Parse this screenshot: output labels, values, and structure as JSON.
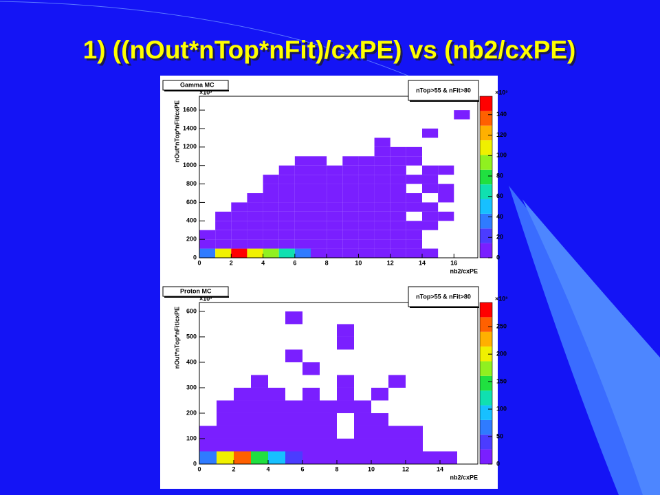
{
  "title": "1) ((nOut*nTop*nFit)/cxPE) vs (nb2/cxPE)",
  "chart_data": [
    {
      "type": "heatmap",
      "title": "Gamma MC",
      "annotation": "nTop>55 & nFit>80",
      "x_label": "nb2/cxPE",
      "y_label": "nOut*nTop*nFit/cxPE",
      "y_multiplier": "×10³",
      "z_multiplier": "×10³",
      "xlim": [
        0,
        17.5
      ],
      "xticks": [
        0,
        2,
        4,
        6,
        8,
        10,
        12,
        14,
        16
      ],
      "ylim": [
        0,
        1750
      ],
      "yticks": [
        0,
        200,
        400,
        600,
        800,
        1000,
        1200,
        1400,
        1600
      ],
      "zlim": [
        0,
        158
      ],
      "zticks": [
        0,
        20,
        40,
        60,
        80,
        100,
        120,
        140
      ],
      "xbins": [
        0,
        1,
        2,
        3,
        4,
        5,
        6,
        7,
        8,
        9,
        10,
        11,
        12,
        13,
        14,
        15,
        16,
        17
      ],
      "ybins": [
        0,
        100,
        200,
        300,
        400,
        500,
        600,
        700,
        800,
        900,
        1000,
        1100,
        1200,
        1300,
        1400,
        1500,
        1600,
        1700
      ],
      "z": [
        [
          40,
          110,
          150,
          110,
          90,
          60,
          30,
          10,
          5,
          3,
          2,
          2,
          1,
          1,
          1,
          0,
          0
        ],
        [
          1,
          1,
          1,
          1,
          1,
          1,
          1,
          1,
          1,
          1,
          1,
          1,
          1,
          1,
          0,
          0,
          0
        ],
        [
          1,
          1,
          1,
          1,
          1,
          1,
          1,
          1,
          1,
          1,
          1,
          1,
          1,
          1,
          0,
          0,
          0
        ],
        [
          0,
          1,
          1,
          1,
          1,
          1,
          1,
          1,
          1,
          1,
          1,
          1,
          1,
          1,
          1,
          0,
          0
        ],
        [
          0,
          1,
          1,
          1,
          1,
          1,
          1,
          1,
          1,
          1,
          1,
          1,
          1,
          0,
          1,
          1,
          0
        ],
        [
          0,
          0,
          1,
          1,
          1,
          1,
          1,
          1,
          1,
          1,
          1,
          1,
          1,
          1,
          1,
          0,
          0
        ],
        [
          0,
          0,
          0,
          1,
          1,
          1,
          1,
          1,
          1,
          1,
          1,
          1,
          1,
          1,
          0,
          1,
          0
        ],
        [
          0,
          0,
          0,
          0,
          1,
          1,
          1,
          1,
          1,
          1,
          1,
          1,
          1,
          0,
          1,
          1,
          0
        ],
        [
          0,
          0,
          0,
          0,
          1,
          1,
          1,
          1,
          1,
          1,
          1,
          1,
          1,
          1,
          1,
          0,
          0
        ],
        [
          0,
          0,
          0,
          0,
          0,
          1,
          1,
          1,
          1,
          1,
          1,
          1,
          1,
          0,
          1,
          1,
          0
        ],
        [
          0,
          0,
          0,
          0,
          0,
          0,
          1,
          1,
          0,
          1,
          1,
          1,
          1,
          1,
          0,
          0,
          0
        ],
        [
          0,
          0,
          0,
          0,
          0,
          0,
          0,
          0,
          0,
          0,
          0,
          1,
          1,
          1,
          0,
          0,
          0
        ],
        [
          0,
          0,
          0,
          0,
          0,
          0,
          0,
          0,
          0,
          0,
          0,
          1,
          0,
          0,
          0,
          0,
          0
        ],
        [
          0,
          0,
          0,
          0,
          0,
          0,
          0,
          0,
          0,
          0,
          0,
          0,
          0,
          0,
          1,
          0,
          0
        ],
        [
          0,
          0,
          0,
          0,
          0,
          0,
          0,
          0,
          0,
          0,
          0,
          0,
          0,
          0,
          0,
          0,
          0
        ],
        [
          0,
          0,
          0,
          0,
          0,
          0,
          0,
          0,
          0,
          0,
          0,
          0,
          0,
          0,
          0,
          0,
          1
        ],
        [
          0,
          0,
          0,
          0,
          0,
          0,
          0,
          0,
          0,
          0,
          0,
          0,
          0,
          0,
          0,
          0,
          0
        ]
      ],
      "palette": [
        "#7a1fff",
        "#4b3cff",
        "#2f7bff",
        "#17c0ff",
        "#10e0b0",
        "#20e040",
        "#90f020",
        "#f0f000",
        "#ffb000",
        "#ff6000",
        "#ff0000"
      ]
    },
    {
      "type": "heatmap",
      "title": "Proton MC",
      "annotation": "nTop>55 & nFit>80",
      "x_label": "nb2/cxPE",
      "y_label": "nOut*nTop*nFit/cxPE",
      "y_multiplier": "×10³",
      "z_multiplier": "×10³",
      "xlim": [
        0,
        16.2
      ],
      "xticks": [
        0,
        2,
        4,
        6,
        8,
        10,
        12,
        14
      ],
      "ylim": [
        0,
        635
      ],
      "yticks": [
        0,
        100,
        200,
        300,
        400,
        500,
        600
      ],
      "zlim": [
        0,
        294
      ],
      "zticks": [
        0,
        50,
        100,
        150,
        200,
        250
      ],
      "xbins": [
        0,
        1,
        2,
        3,
        4,
        5,
        6,
        7,
        8,
        9,
        10,
        11,
        12,
        13,
        14,
        15,
        16
      ],
      "ybins": [
        0,
        50,
        100,
        150,
        200,
        250,
        300,
        350,
        400,
        450,
        500,
        550,
        600,
        650
      ],
      "z": [
        [
          80,
          200,
          250,
          150,
          90,
          50,
          20,
          10,
          5,
          3,
          2,
          1,
          1,
          1,
          1,
          0
        ],
        [
          1,
          1,
          1,
          1,
          1,
          1,
          1,
          1,
          1,
          1,
          1,
          1,
          1,
          0,
          0,
          0
        ],
        [
          1,
          1,
          1,
          1,
          1,
          1,
          1,
          1,
          0,
          1,
          1,
          1,
          1,
          0,
          0,
          0
        ],
        [
          0,
          1,
          1,
          1,
          1,
          1,
          1,
          1,
          0,
          1,
          1,
          0,
          0,
          0,
          0,
          0
        ],
        [
          0,
          1,
          1,
          1,
          1,
          1,
          1,
          1,
          1,
          1,
          0,
          0,
          0,
          0,
          0,
          0
        ],
        [
          0,
          0,
          1,
          1,
          1,
          0,
          1,
          0,
          1,
          0,
          1,
          0,
          0,
          0,
          0,
          0
        ],
        [
          0,
          0,
          0,
          1,
          0,
          0,
          0,
          0,
          1,
          0,
          0,
          1,
          0,
          0,
          0,
          0
        ],
        [
          0,
          0,
          0,
          0,
          0,
          0,
          1,
          0,
          0,
          0,
          0,
          0,
          0,
          0,
          0,
          0
        ],
        [
          0,
          0,
          0,
          0,
          0,
          1,
          0,
          0,
          0,
          0,
          0,
          0,
          0,
          0,
          0,
          0
        ],
        [
          0,
          0,
          0,
          0,
          0,
          0,
          0,
          0,
          1,
          0,
          0,
          0,
          0,
          0,
          0,
          0
        ],
        [
          0,
          0,
          0,
          0,
          0,
          0,
          0,
          0,
          1,
          0,
          0,
          0,
          0,
          0,
          0,
          0
        ],
        [
          0,
          0,
          0,
          0,
          0,
          1,
          0,
          0,
          0,
          0,
          0,
          0,
          0,
          0,
          0,
          0
        ],
        [
          0,
          0,
          0,
          0,
          0,
          0,
          0,
          0,
          0,
          0,
          0,
          0,
          0,
          0,
          0,
          0
        ]
      ],
      "palette": [
        "#7a1fff",
        "#4b3cff",
        "#2f7bff",
        "#17c0ff",
        "#10e0b0",
        "#20e040",
        "#90f020",
        "#f0f000",
        "#ffb000",
        "#ff6000",
        "#ff0000"
      ]
    }
  ]
}
